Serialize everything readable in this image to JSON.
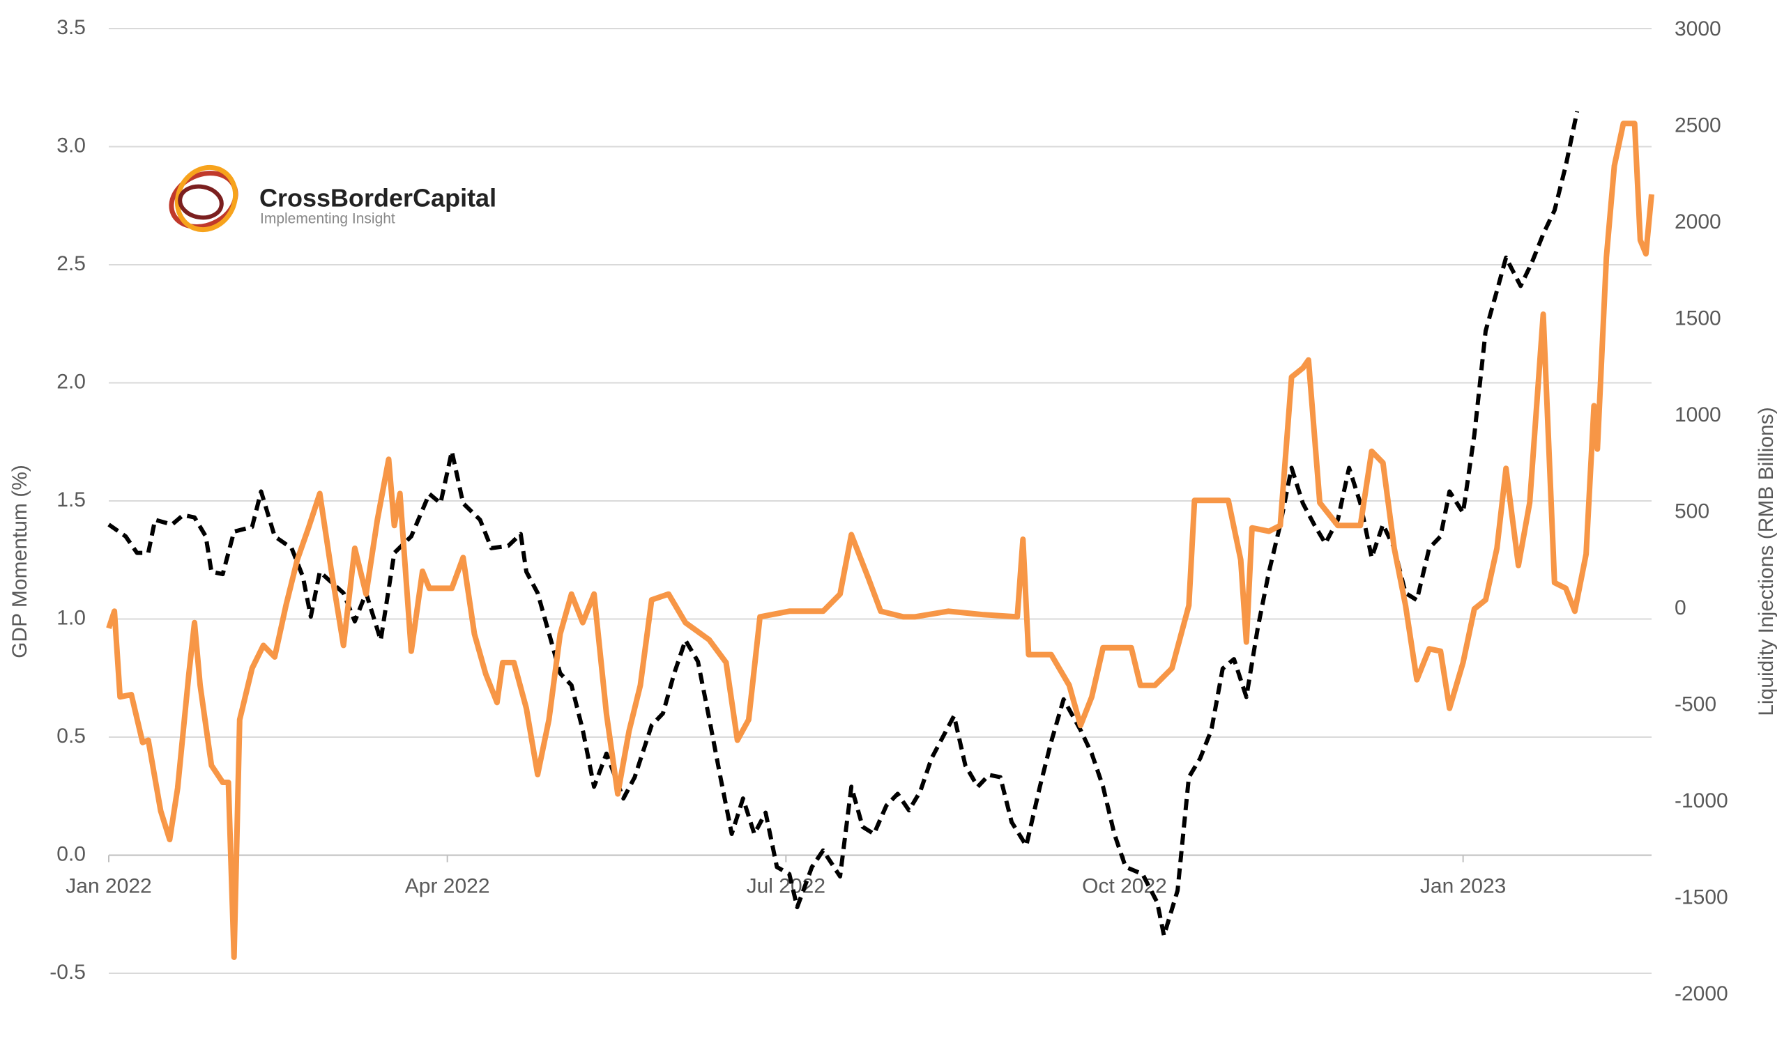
{
  "chart_data": {
    "type": "line",
    "y_label": "GDP Momentum (%)",
    "y2_label": "Liquidity Injections (RMB Billions)",
    "logo": {
      "name": "CrossBorderCapital",
      "tagline": "Implementing Insight"
    },
    "xlim": [
      0,
      13.67
    ],
    "xticks": [
      {
        "value": 0,
        "label": "Jan 2022"
      },
      {
        "value": 3,
        "label": "Apr 2022"
      },
      {
        "value": 6,
        "label": "Jul 2022"
      },
      {
        "value": 9,
        "label": "Oct 2022"
      },
      {
        "value": 12,
        "label": "Jan 2023"
      }
    ],
    "ylim": [
      -0.5,
      3.5
    ],
    "yticks": [
      -0.5,
      {
        "value": 0,
        "label": "0.0"
      },
      0.5,
      {
        "value": 1,
        "label": "1.0"
      },
      1.5,
      {
        "value": 2,
        "label": "2.0"
      },
      2.5,
      {
        "value": 3,
        "label": "3.0"
      },
      3.5
    ],
    "y2lim": [
      -2000,
      3000
    ],
    "y2ticks": [
      -2000,
      -1500,
      -1000,
      -500,
      0,
      500,
      1000,
      1500,
      2000,
      2500,
      3000
    ],
    "grid": true,
    "series": [
      {
        "color": "#000000",
        "dashed": true,
        "axis": "y",
        "x": [
          0.0,
          0.15,
          0.25,
          0.35,
          0.41,
          0.56,
          0.66,
          0.76,
          0.86,
          0.91,
          1.01,
          1.11,
          1.27,
          1.35,
          1.47,
          1.62,
          1.72,
          1.79,
          1.87,
          2.08,
          2.18,
          2.28,
          2.41,
          2.53,
          2.68,
          2.84,
          2.94,
          3.04,
          3.14,
          3.29,
          3.39,
          3.54,
          3.65,
          3.7,
          3.8,
          3.9,
          4.0,
          4.1,
          4.2,
          4.3,
          4.41,
          4.56,
          4.66,
          4.81,
          4.91,
          5.01,
          5.11,
          5.22,
          5.32,
          5.42,
          5.52,
          5.62,
          5.72,
          5.82,
          5.92,
          6.03,
          6.1,
          6.23,
          6.33,
          6.48,
          6.58,
          6.68,
          6.78,
          6.89,
          6.99,
          7.09,
          7.19,
          7.29,
          7.39,
          7.49,
          7.59,
          7.7,
          7.8,
          7.9,
          8.0,
          8.13,
          8.25,
          8.35,
          8.46,
          8.61,
          8.71,
          8.81,
          8.91,
          9.01,
          9.16,
          9.29,
          9.35,
          9.47,
          9.57,
          9.67,
          9.77,
          9.87,
          9.97,
          10.08,
          10.18,
          10.28,
          10.38,
          10.48,
          10.58,
          10.68,
          10.78,
          10.89,
          10.99,
          11.09,
          11.19,
          11.29,
          11.39,
          11.49,
          11.59,
          11.7,
          11.8,
          11.88,
          12.0,
          12.1,
          12.2,
          12.3,
          12.38,
          12.51,
          12.61,
          12.71,
          12.81,
          12.91,
          13.01
        ],
        "values": [
          1.4,
          1.35,
          1.28,
          1.28,
          1.42,
          1.4,
          1.44,
          1.43,
          1.35,
          1.2,
          1.19,
          1.37,
          1.39,
          1.54,
          1.35,
          1.3,
          1.18,
          1.01,
          1.2,
          1.11,
          0.99,
          1.11,
          0.91,
          1.28,
          1.35,
          1.53,
          1.49,
          1.71,
          1.49,
          1.42,
          1.3,
          1.31,
          1.36,
          1.2,
          1.11,
          0.94,
          0.77,
          0.72,
          0.53,
          0.29,
          0.43,
          0.24,
          0.33,
          0.55,
          0.6,
          0.77,
          0.91,
          0.82,
          0.58,
          0.33,
          0.09,
          0.24,
          0.09,
          0.18,
          -0.05,
          -0.08,
          -0.22,
          -0.05,
          0.02,
          -0.09,
          0.29,
          0.12,
          0.09,
          0.21,
          0.26,
          0.19,
          0.27,
          0.41,
          0.5,
          0.59,
          0.38,
          0.29,
          0.34,
          0.33,
          0.14,
          0.04,
          0.29,
          0.48,
          0.66,
          0.53,
          0.43,
          0.29,
          0.09,
          -0.05,
          -0.08,
          -0.2,
          -0.34,
          -0.15,
          0.33,
          0.41,
          0.53,
          0.79,
          0.83,
          0.67,
          0.96,
          1.2,
          1.4,
          1.64,
          1.49,
          1.4,
          1.32,
          1.42,
          1.64,
          1.49,
          1.26,
          1.4,
          1.3,
          1.11,
          1.08,
          1.3,
          1.35,
          1.54,
          1.45,
          1.78,
          2.22,
          2.39,
          2.53,
          2.41,
          2.51,
          2.63,
          2.73,
          2.92,
          3.15
        ]
      },
      {
        "color": "#f79646",
        "dashed": false,
        "axis": "y2",
        "x": [
          0.0,
          0.05,
          0.1,
          0.2,
          0.3,
          0.35,
          0.46,
          0.54,
          0.61,
          0.71,
          0.76,
          0.81,
          0.91,
          1.01,
          1.06,
          1.11,
          1.16,
          1.27,
          1.37,
          1.47,
          1.57,
          1.67,
          1.77,
          1.87,
          1.97,
          2.08,
          2.18,
          2.28,
          2.38,
          2.48,
          2.53,
          2.58,
          2.68,
          2.78,
          2.84,
          2.94,
          3.04,
          3.14,
          3.24,
          3.34,
          3.44,
          3.49,
          3.59,
          3.7,
          3.8,
          3.9,
          4.0,
          4.1,
          4.2,
          4.3,
          4.41,
          4.51,
          4.61,
          4.71,
          4.81,
          4.96,
          5.11,
          5.32,
          5.47,
          5.57,
          5.67,
          5.77,
          6.03,
          6.33,
          6.48,
          6.58,
          6.73,
          6.84,
          7.04,
          7.14,
          7.44,
          7.75,
          8.05,
          8.1,
          8.15,
          8.35,
          8.51,
          8.61,
          8.71,
          8.81,
          9.06,
          9.14,
          9.27,
          9.42,
          9.57,
          9.62,
          9.92,
          10.03,
          10.08,
          10.13,
          10.28,
          10.38,
          10.48,
          10.58,
          10.63,
          10.73,
          10.89,
          10.99,
          11.09,
          11.19,
          11.29,
          11.39,
          11.49,
          11.59,
          11.7,
          11.8,
          11.88,
          12.0,
          12.1,
          12.2,
          12.3,
          12.38,
          12.49,
          12.59,
          12.71,
          12.81,
          12.91,
          12.99,
          13.09,
          13.16,
          13.19,
          13.27,
          13.34,
          13.42,
          13.52,
          13.57,
          13.62,
          13.67
        ],
        "values": [
          -100,
          -12,
          -456,
          -444,
          -692,
          -680,
          -1047,
          -1195,
          -929,
          -337,
          -71,
          -396,
          -811,
          -899,
          -899,
          -1805,
          -574,
          -308,
          -189,
          -249,
          18,
          254,
          420,
          598,
          207,
          -189,
          314,
          77,
          462,
          775,
          432,
          598,
          -219,
          195,
          107,
          107,
          107,
          266,
          -130,
          -337,
          -485,
          -278,
          -278,
          -515,
          -858,
          -574,
          -130,
          77,
          -71,
          77,
          -544,
          -959,
          -633,
          -396,
          47,
          77,
          -71,
          -160,
          -278,
          -680,
          -574,
          -41,
          -12,
          -12,
          77,
          385,
          160,
          -12,
          -41,
          -41,
          -12,
          -30,
          -41,
          361,
          -237,
          -237,
          -396,
          -604,
          -456,
          -201,
          -201,
          -396,
          -396,
          -308,
          18,
          562,
          562,
          254,
          -172,
          420,
          402,
          432,
          1201,
          1248,
          1290,
          550,
          432,
          432,
          432,
          817,
          757,
          314,
          18,
          -367,
          -207,
          -219,
          -515,
          -278,
          0,
          47,
          314,
          728,
          225,
          550,
          1527,
          136,
          107,
          -12,
          284,
          1053,
          828,
          1822,
          2296,
          2515,
          2515,
          1911,
          1840,
          2148
        ]
      }
    ]
  }
}
